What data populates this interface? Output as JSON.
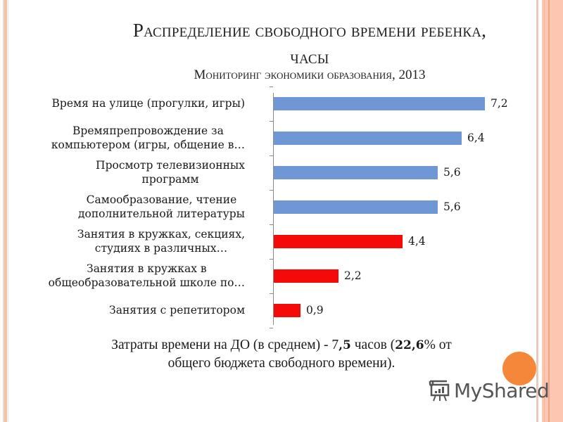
{
  "slide": {
    "title_line1": "Распределение  свободного времени ребенка,",
    "title_line2": "часы",
    "subtitle": "Мониторинг экономики образования, 2013",
    "footer_part1": "Затраты времени на ДО (в среднем) -  7",
    "footer_bold1": ",5",
    "footer_part2": " часов (",
    "footer_bold2": "22,6",
    "footer_part3": "% от",
    "footer_line2": "общего бюджета свободного времени).",
    "watermark": "MyShared"
  },
  "colors": {
    "blue_bar": "#6f97d6",
    "red_bar": "#f50a0a",
    "accent_orange": "#f5873a",
    "side_panel": "#fcc6b0"
  },
  "chart_data": {
    "type": "bar",
    "orientation": "horizontal",
    "title": "Распределение свободного времени ребенка, часы",
    "subtitle": "Мониторинг экономики образования, 2013",
    "xlabel": "",
    "ylabel": "",
    "xlim": [
      0,
      8
    ],
    "grid": false,
    "legend": null,
    "categories": [
      "Время на улице (прогулки, игры)",
      "Времяпрепровождение за компьютером (игры, общение в…",
      "Просмотр телевизионных программ",
      "Самообразование, чтение дополнительной литературы",
      "Занятия в кружках, секциях, студиях в различных…",
      "Занятия в кружках в общеобразовательной школе по…",
      "Занятия с репетитором"
    ],
    "values": [
      7.2,
      6.4,
      5.6,
      5.6,
      4.4,
      2.2,
      0.9
    ],
    "value_labels": [
      "7,2",
      "6,4",
      "5,6",
      "5,6",
      "4,4",
      "2,2",
      "0,9"
    ],
    "bar_colors": [
      "#6f97d6",
      "#6f97d6",
      "#6f97d6",
      "#6f97d6",
      "#f50a0a",
      "#f50a0a",
      "#f50a0a"
    ],
    "label_lines": [
      [
        "Время на улице (прогулки, игры)"
      ],
      [
        "Времяпрепровождение за",
        "компьютером (игры, общение в…"
      ],
      [
        "Просмотр телевизионных",
        "программ"
      ],
      [
        "Самообразование, чтение",
        "дополнительной литературы"
      ],
      [
        "Занятия в кружках, секциях,",
        "студиях в различных…"
      ],
      [
        "Занятия в кружках в",
        "общеобразовательной школе по…"
      ],
      [
        "Занятия с репетитором"
      ]
    ]
  }
}
